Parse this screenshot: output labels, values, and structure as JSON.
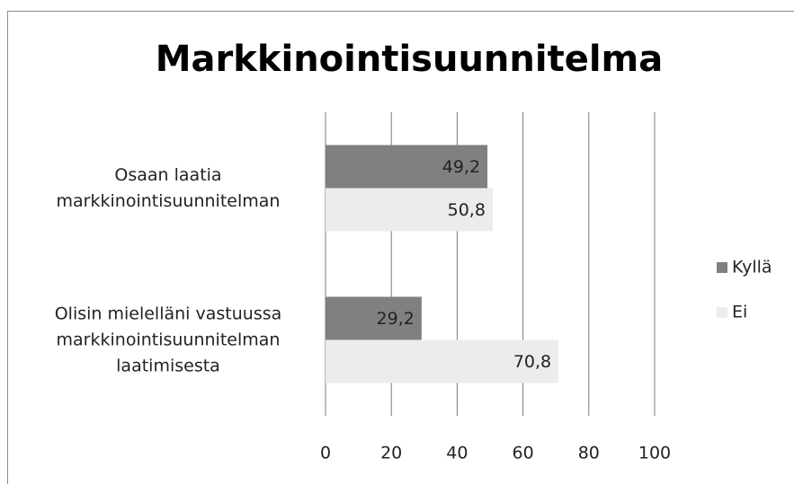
{
  "chart_data": {
    "type": "bar",
    "orientation": "horizontal",
    "title": "Markkinointisuunnitelma",
    "categories": [
      "Osaan laatia markkinointisuunnitelman",
      "Olisin mielelläni vastuussa markkinointisuunnitelman laatimisesta"
    ],
    "series": [
      {
        "name": "Kyllä",
        "color": "#808080",
        "values": [
          49.2,
          29.2
        ],
        "value_labels": [
          "49,2",
          "29,2"
        ]
      },
      {
        "name": "Ei",
        "color": "#ececec",
        "values": [
          50.8,
          70.8
        ],
        "value_labels": [
          "50,8",
          "70,8"
        ]
      }
    ],
    "xlim": [
      0,
      100
    ],
    "xticks": [
      0,
      20,
      40,
      60,
      80,
      100
    ],
    "grid": true,
    "legend": "right"
  }
}
